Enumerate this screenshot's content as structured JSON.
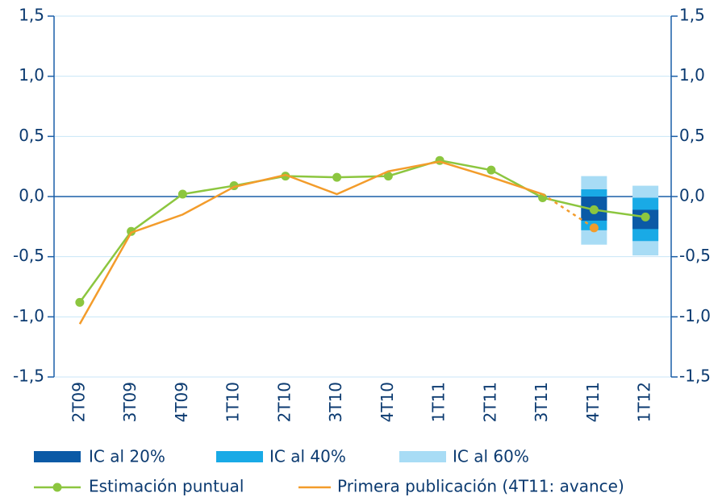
{
  "chart_data": {
    "type": "line",
    "categories": [
      "2T09",
      "3T09",
      "4T09",
      "1T10",
      "2T10",
      "3T10",
      "4T10",
      "1T11",
      "2T11",
      "3T11",
      "4T11",
      "1T12"
    ],
    "ylim": [
      -1.5,
      1.5
    ],
    "yticks": [
      {
        "value": -1.5,
        "label": "-1,5"
      },
      {
        "value": -1.0,
        "label": "-1,0"
      },
      {
        "value": -0.5,
        "label": "-0,5"
      },
      {
        "value": 0,
        "label": "0,0"
      },
      {
        "value": 0.5,
        "label": "0,5"
      },
      {
        "value": 1.0,
        "label": "1,0"
      },
      {
        "value": 1.5,
        "label": "1,5"
      }
    ],
    "y2lim": [
      -1.5,
      1.5
    ],
    "y2ticks": [
      {
        "value": -1.5,
        "label": "-1,5"
      },
      {
        "value": -1.0,
        "label": "-1,0"
      },
      {
        "value": -0.5,
        "label": "-0,5"
      },
      {
        "value": 0,
        "label": "0,0"
      },
      {
        "value": 0.5,
        "label": "0,5"
      },
      {
        "value": 1.0,
        "label": "1,0"
      },
      {
        "value": 1.5,
        "label": "1,5"
      }
    ],
    "grid": true,
    "intervals": [
      {
        "name": "IC al 20%",
        "color": "#0b5aa6",
        "low": [
          null,
          null,
          null,
          null,
          null,
          null,
          null,
          null,
          null,
          null,
          -0.2,
          -0.27
        ],
        "high": [
          null,
          null,
          null,
          null,
          null,
          null,
          null,
          null,
          null,
          null,
          0.0,
          -0.11
        ]
      },
      {
        "name": "IC al 40%",
        "color": "#19aae6",
        "low": [
          null,
          null,
          null,
          null,
          null,
          null,
          null,
          null,
          null,
          null,
          -0.28,
          -0.37
        ],
        "high": [
          null,
          null,
          null,
          null,
          null,
          null,
          null,
          null,
          null,
          null,
          0.06,
          -0.01
        ]
      },
      {
        "name": "IC al 60%",
        "color": "#a8dcf5",
        "low": [
          null,
          null,
          null,
          null,
          null,
          null,
          null,
          null,
          null,
          null,
          -0.4,
          -0.49
        ],
        "high": [
          null,
          null,
          null,
          null,
          null,
          null,
          null,
          null,
          null,
          null,
          0.17,
          0.09
        ]
      }
    ],
    "series": [
      {
        "name": "Estimación puntual",
        "color": "#8cc63f",
        "markers": true,
        "values": [
          -0.88,
          -0.29,
          0.02,
          0.09,
          0.17,
          0.16,
          0.17,
          0.3,
          0.22,
          -0.01,
          -0.11,
          -0.17
        ]
      },
      {
        "name": "Primera publicación (4T11: avance)",
        "color": "#f39c2b",
        "markers": false,
        "dashed_last": true,
        "marker_last": true,
        "values": [
          -1.06,
          -0.3,
          -0.15,
          0.08,
          0.18,
          0.02,
          0.21,
          0.29,
          0.16,
          0.02,
          -0.26,
          null
        ]
      }
    ]
  }
}
